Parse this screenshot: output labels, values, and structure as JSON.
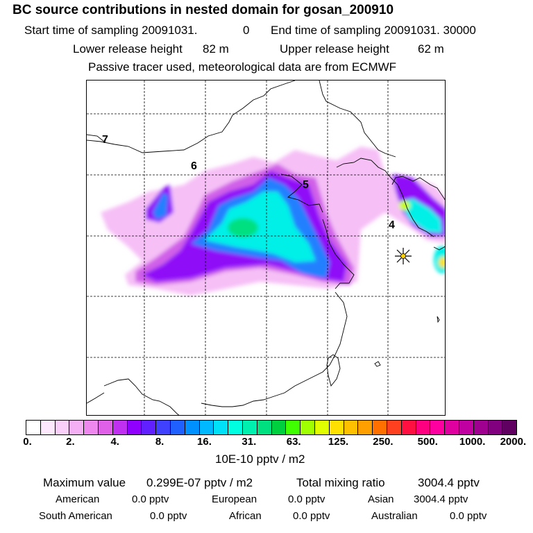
{
  "header": {
    "title": "BC  source contributions in nested domain for gosan_200910",
    "start_label": "Start time of sampling 20091031.",
    "start_value": "0",
    "end_label": "End time of sampling 20091031. 30000",
    "lower_label": "Lower release height",
    "lower_value": "82 m",
    "upper_label": "Upper release height",
    "upper_value": "62 m",
    "note": "Passive tracer used, meteorological data are from ECMWF"
  },
  "map": {
    "contour_labels": [
      "7",
      "6",
      "5",
      "4"
    ],
    "receptor": "star-marker"
  },
  "colorbar": {
    "colors": [
      "#ffffff",
      "#fde8fd",
      "#fad0fa",
      "#f5b0f5",
      "#ee88ee",
      "#e060e8",
      "#c030f0",
      "#9000ff",
      "#6020ff",
      "#4040ff",
      "#2060ff",
      "#0090ff",
      "#00b8ff",
      "#00e0f8",
      "#00ffe0",
      "#00f0b0",
      "#00e080",
      "#00d040",
      "#40ff00",
      "#a0ff00",
      "#e0ff00",
      "#ffe000",
      "#ffc000",
      "#ffa000",
      "#ff7000",
      "#ff4020",
      "#ff1040",
      "#ff0080",
      "#ff00a0",
      "#e000a0",
      "#c000a0",
      "#a00090",
      "#800080",
      "#600060"
    ],
    "ticks": [
      "0.",
      "2.",
      "4.",
      "8.",
      "16.",
      "31.",
      "63.",
      "125.",
      "250.",
      "500.",
      "1000.",
      "2000."
    ],
    "unit": "10E-10 pptv / m2"
  },
  "stats": {
    "max_label": "Maximum value",
    "max_value": "0.299E-07 pptv / m2",
    "total_label": "Total mixing ratio",
    "total_value": "3004.4 pptv",
    "regions": [
      {
        "name": "American",
        "value": "0.0 pptv"
      },
      {
        "name": "European",
        "value": "0.0 pptv"
      },
      {
        "name": "Asian",
        "value": "3004.4 pptv"
      },
      {
        "name": "South American",
        "value": "0.0 pptv"
      },
      {
        "name": "African",
        "value": "0.0 pptv"
      },
      {
        "name": "Australian",
        "value": "0.0 pptv"
      }
    ]
  }
}
